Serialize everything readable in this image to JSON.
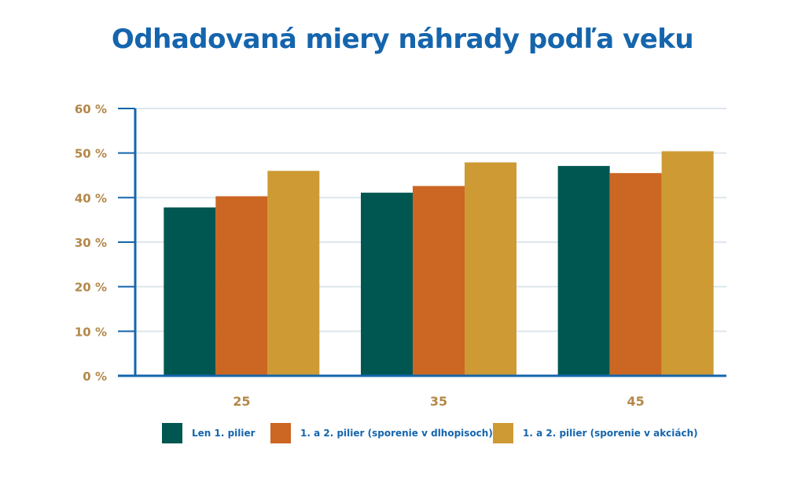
{
  "title": "Odhadovaná miery náhrady podľa veku",
  "chart_data": {
    "type": "bar",
    "categories": [
      "25",
      "35",
      "45"
    ],
    "series": [
      {
        "name": "Len 1. pilier",
        "values": [
          37.8,
          41.1,
          47.1
        ],
        "color": "#005752"
      },
      {
        "name": "1. a 2. pilier (sporenie v dlhopisoch)",
        "values": [
          40.3,
          42.6,
          45.5
        ],
        "color": "#cc6623"
      },
      {
        "name": "1. a 2. pilier (sporenie v akciách)",
        "values": [
          46.0,
          47.9,
          50.4
        ],
        "color": "#cd9a34"
      }
    ],
    "ylim": [
      0,
      60
    ],
    "yticks": [
      "0 %",
      "10 %",
      "20 %",
      "30 %",
      "40 %",
      "50 %",
      "60 %"
    ],
    "grid": true,
    "legend": "bottom",
    "colors": {
      "title": "#1565ad",
      "axis": "#1565ad",
      "tick_labels": "#b3884a",
      "grid": "#dce6ee"
    }
  }
}
